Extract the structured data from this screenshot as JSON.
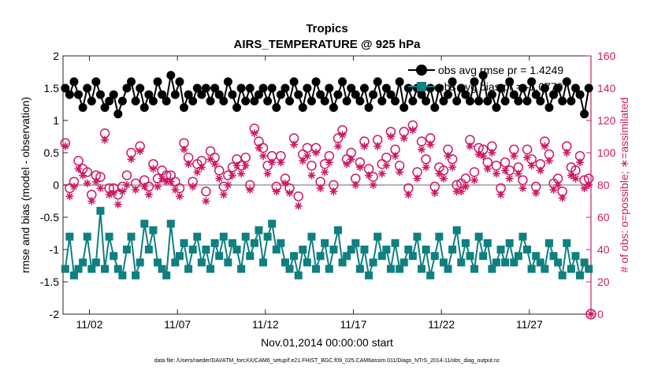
{
  "chart_data": {
    "type": "line",
    "title": "Tropics",
    "subtitle": "AIRS_TEMPERATURE @ 925 hPa",
    "xlabel": "Nov.01,2014 00:00:00 start",
    "ylabel_left": "rmse and bias (model - observation)",
    "ylabel_right": "# of obs: o=possible; ∗=assimilated",
    "footnote": "data file: /Users/raeder/DAI/ATM_forcXX/CAM6_setup/f.e21.FHIST_BGC.f09_025.CAM6assim.011/Diags_NTrS_2014-11/obs_diag_output.nc",
    "xlim": [
      0.5,
      30.5
    ],
    "ylim_left": [
      -2,
      2
    ],
    "ylim_right": [
      0,
      160
    ],
    "x_ticks": [
      {
        "pos": 2,
        "label": "11/02"
      },
      {
        "pos": 7,
        "label": "11/07"
      },
      {
        "pos": 12,
        "label": "11/12"
      },
      {
        "pos": 17,
        "label": "11/17"
      },
      {
        "pos": 22,
        "label": "11/22"
      },
      {
        "pos": 27,
        "label": "11/27"
      }
    ],
    "y_ticks_left": [
      "-2",
      "-1.5",
      "-1",
      "-0.5",
      "0",
      "0.5",
      "1",
      "1.5",
      "2"
    ],
    "y_ticks_right": [
      "0",
      "20",
      "40",
      "60",
      "80",
      "100",
      "120",
      "140",
      "160"
    ],
    "legend": [
      {
        "name": "obs avg rmse pr = 1.4249",
        "color": "#000000"
      },
      {
        "name": "obs avg bias pr = -1.0770",
        "color": "#0f7f80"
      }
    ],
    "colors": {
      "rmse": "#000000",
      "bias": "#0f7f80",
      "obs": "#cc1a66",
      "zero_line": "#b3b3b3"
    },
    "rmse": [
      1.5,
      1.4,
      1.6,
      1.4,
      1.2,
      1.5,
      1.3,
      1.6,
      1.4,
      1.2,
      1.3,
      1.4,
      1.1,
      1.3,
      1.5,
      1.6,
      1.3,
      1.5,
      1.2,
      1.4,
      1.3,
      1.6,
      1.4,
      1.3,
      1.7,
      1.4,
      1.6,
      1.2,
      1.4,
      1.3,
      1.5,
      1.4,
      1.5,
      1.3,
      1.5,
      1.4,
      1.3,
      1.6,
      1.4,
      1.2,
      1.5,
      1.3,
      1.5,
      1.3,
      1.4,
      1.5,
      1.3,
      1.5,
      1.2,
      1.4,
      1.5,
      1.3,
      1.6,
      1.4,
      1.2,
      1.5,
      1.3,
      1.6,
      1.4,
      1.3,
      1.5,
      1.2,
      1.4,
      1.6,
      1.3,
      1.5,
      1.4,
      1.3,
      1.5,
      1.2,
      1.4,
      1.6,
      1.3,
      1.5,
      1.4,
      1.3,
      1.6,
      1.2,
      1.5,
      1.3,
      1.5,
      1.4,
      1.3,
      1.5,
      1.2,
      1.5,
      1.3,
      1.4,
      1.6,
      1.3,
      1.5,
      1.4,
      1.3,
      1.6,
      1.3,
      1.7,
      1.3,
      1.4,
      1.2,
      1.5,
      1.3,
      1.6,
      1.4,
      1.3,
      1.5,
      1.3,
      1.6,
      1.4,
      1.3,
      1.5,
      1.2,
      1.4,
      1.5,
      1.3,
      1.6,
      1.3,
      1.5,
      1.4,
      1.1,
      1.5
    ],
    "bias": [
      -1.3,
      -0.8,
      -1.4,
      -1.3,
      -1.2,
      -0.8,
      -1.3,
      -1.2,
      -0.4,
      -1.3,
      -0.8,
      -1.1,
      -1.3,
      -1.4,
      -1.0,
      -0.8,
      -1.4,
      -1.2,
      -0.6,
      -1.0,
      -0.7,
      -1.2,
      -1.3,
      -1.4,
      -0.6,
      -1.2,
      -1.1,
      -0.9,
      -1.3,
      -1.0,
      -0.8,
      -1.2,
      -1.0,
      -1.3,
      -0.9,
      -1.1,
      -0.8,
      -1.2,
      -0.9,
      -1.0,
      -1.3,
      -0.8,
      -1.1,
      -0.9,
      -0.7,
      -1.2,
      -0.8,
      -0.6,
      -1.0,
      -0.9,
      -1.2,
      -1.3,
      -1.1,
      -1.4,
      -1.0,
      -1.2,
      -0.8,
      -1.3,
      -1.1,
      -0.9,
      -1.3,
      -1.0,
      -0.7,
      -1.2,
      -1.1,
      -1.0,
      -0.9,
      -1.3,
      -1.0,
      -1.4,
      -1.2,
      -0.8,
      -1.1,
      -1.0,
      -1.3,
      -0.9,
      -1.3,
      -1.2,
      -1.0,
      -1.1,
      -0.8,
      -1.3,
      -1.0,
      -1.4,
      -1.1,
      -0.8,
      -1.2,
      -1.3,
      -1.0,
      -0.7,
      -1.2,
      -0.9,
      -1.1,
      -1.3,
      -0.8,
      -1.1,
      -0.9,
      -1.3,
      -1.2,
      -1.0,
      -1.2,
      -0.9,
      -1.2,
      -1.1,
      -0.8,
      -1.0,
      -1.3,
      -1.1,
      -1.2,
      -1.3,
      -0.9,
      -1.1,
      -1.2,
      -1.4,
      -0.9,
      -1.3,
      -1.1,
      -1.4,
      -1.2,
      -1.3
    ],
    "obs_possible": [
      106,
      78,
      82,
      95,
      90,
      88,
      74,
      86,
      85,
      112,
      78,
      78,
      74,
      79,
      86,
      100,
      81,
      104,
      83,
      79,
      93,
      84,
      89,
      86,
      86,
      82,
      78,
      106,
      97,
      82,
      93,
      95,
      76,
      101,
      97,
      89,
      79,
      86,
      91,
      96,
      92,
      97,
      80,
      115,
      107,
      103,
      92,
      98,
      79,
      98,
      84,
      78,
      109,
      73,
      99,
      103,
      92,
      103,
      82,
      93,
      98,
      80,
      109,
      114,
      96,
      100,
      84,
      94,
      107,
      90,
      85,
      108,
      93,
      97,
      113,
      102,
      92,
      113,
      78,
      117,
      88,
      107,
      96,
      109,
      79,
      91,
      89,
      102,
      96,
      80,
      81,
      84,
      108,
      88,
      103,
      102,
      94,
      104,
      92,
      78,
      94,
      89,
      102,
      91,
      83,
      102,
      96,
      79,
      93,
      107,
      99,
      81,
      84,
      76,
      104,
      91,
      89,
      98,
      83,
      84
    ],
    "obs_assimilated": [
      104,
      73,
      79,
      90,
      86,
      81,
      70,
      82,
      78,
      108,
      74,
      75,
      68,
      76,
      80,
      96,
      77,
      101,
      79,
      74,
      90,
      79,
      84,
      82,
      82,
      77,
      73,
      102,
      93,
      79,
      88,
      91,
      70,
      96,
      93,
      84,
      74,
      80,
      86,
      92,
      87,
      92,
      77,
      112,
      103,
      98,
      87,
      94,
      76,
      94,
      81,
      75,
      105,
      67,
      95,
      98,
      86,
      100,
      78,
      88,
      94,
      76,
      104,
      111,
      93,
      96,
      80,
      91,
      104,
      86,
      80,
      104,
      87,
      92,
      110,
      98,
      88,
      109,
      74,
      114,
      84,
      102,
      91,
      105,
      75,
      87,
      84,
      98,
      91,
      76,
      76,
      79,
      104,
      83,
      99,
      98,
      90,
      100,
      87,
      74,
      89,
      84,
      98,
      87,
      78,
      97,
      92,
      75,
      89,
      104,
      95,
      77,
      80,
      72,
      100,
      86,
      84,
      94,
      78,
      80
    ]
  }
}
